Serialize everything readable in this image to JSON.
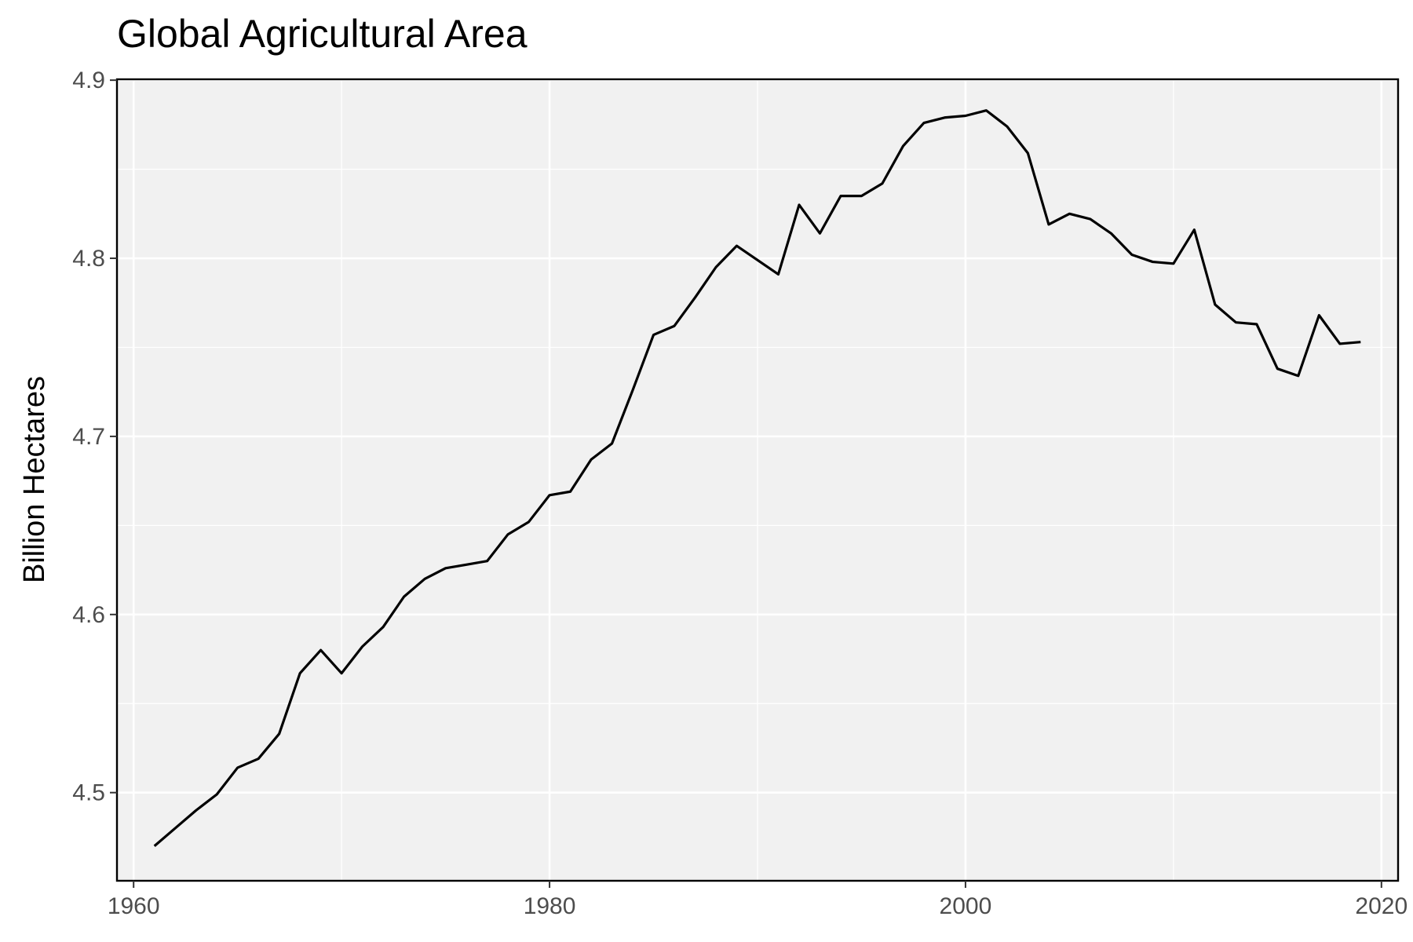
{
  "chart_data": {
    "type": "line",
    "title": "Global Agricultural Area",
    "xlabel": "",
    "ylabel": "Billion Hectares",
    "xlim": [
      1959.2,
      2020.8
    ],
    "ylim": [
      4.4505,
      4.9005
    ],
    "x_ticks": [
      1960,
      1980,
      2000,
      2020
    ],
    "y_ticks": [
      4.5,
      4.6,
      4.7,
      4.8,
      4.9
    ],
    "x_tick_labels": [
      "1960",
      "1980",
      "2000",
      "2020"
    ],
    "y_tick_labels": [
      "4.5",
      "4.6",
      "4.7",
      "4.8",
      "4.9"
    ],
    "grid": true,
    "legend": "none",
    "panel_background": "#f1f1f1",
    "line_color": "#000000",
    "series": [
      {
        "x": [
          1961,
          1962,
          1963,
          1964,
          1965,
          1966,
          1967,
          1968,
          1969,
          1970,
          1971,
          1972,
          1973,
          1974,
          1975,
          1976,
          1977,
          1978,
          1979,
          1980,
          1981,
          1982,
          1983,
          1984,
          1985,
          1986,
          1987,
          1988,
          1989,
          1990,
          1991,
          1992,
          1993,
          1994,
          1995,
          1996,
          1997,
          1998,
          1999,
          2000,
          2001,
          2002,
          2003,
          2004,
          2005,
          2006,
          2007,
          2008,
          2009,
          2010,
          2011,
          2012,
          2013,
          2014,
          2015,
          2016,
          2017,
          2018,
          2019
        ],
        "values": [
          4.47,
          4.48,
          4.49,
          4.499,
          4.514,
          4.519,
          4.533,
          4.567,
          4.58,
          4.567,
          4.582,
          4.593,
          4.61,
          4.62,
          4.626,
          4.628,
          4.63,
          4.645,
          4.652,
          4.667,
          4.669,
          4.687,
          4.696,
          4.726,
          4.757,
          4.762,
          4.778,
          4.795,
          4.807,
          4.799,
          4.791,
          4.83,
          4.814,
          4.835,
          4.835,
          4.842,
          4.863,
          4.876,
          4.879,
          4.88,
          4.883,
          4.874,
          4.859,
          4.819,
          4.825,
          4.822,
          4.814,
          4.802,
          4.798,
          4.797,
          4.816,
          4.774,
          4.764,
          4.763,
          4.738,
          4.734,
          4.768,
          4.752,
          4.753
        ]
      }
    ]
  }
}
